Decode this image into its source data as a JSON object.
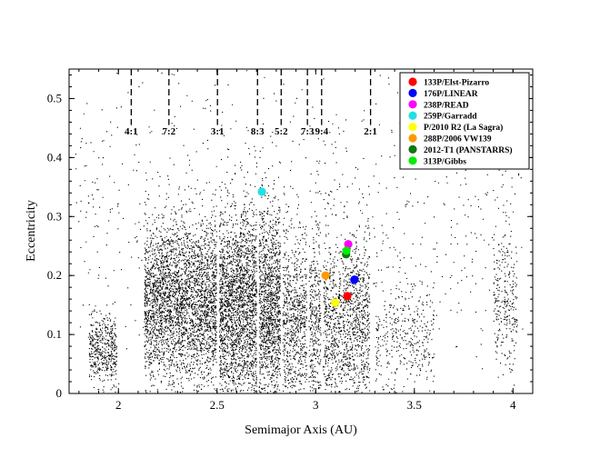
{
  "chart_data": {
    "type": "scatter",
    "xlabel": "Semimajor Axis (AU)",
    "ylabel": "Eccentricity",
    "xlim": [
      1.75,
      4.1
    ],
    "ylim": [
      0,
      0.55
    ],
    "x_ticks": [
      2,
      2.5,
      3,
      3.5,
      4
    ],
    "x_tick_labels": [
      "2",
      "2.5",
      "3",
      "3.5",
      "4"
    ],
    "y_ticks": [
      0,
      0.1,
      0.2,
      0.3,
      0.4,
      0.5
    ],
    "y_tick_labels": [
      "0",
      "0.1",
      "0.2",
      "0.3",
      "0.4",
      "0.5"
    ],
    "grid": false,
    "legend_position": "top-right",
    "resonances": [
      {
        "label": "4:1",
        "a": 2.065
      },
      {
        "label": "7:2",
        "a": 2.256
      },
      {
        "label": "3:1",
        "a": 2.502
      },
      {
        "label": "8:3",
        "a": 2.705
      },
      {
        "label": "5:2",
        "a": 2.825
      },
      {
        "label": "7:3",
        "a": 2.958
      },
      {
        "label": "9:4",
        "a": 3.03
      },
      {
        "label": "2:1",
        "a": 3.278
      }
    ],
    "background_population": {
      "description_label": "",
      "color": "#000000",
      "clusters": [
        {
          "a_range": [
            1.85,
            1.99
          ],
          "e_center": 0.075,
          "e_spread": 0.028,
          "weight": 450
        },
        {
          "a_range": [
            2.13,
            2.5
          ],
          "e_center": 0.155,
          "e_spread": 0.07,
          "weight": 3200
        },
        {
          "a_range": [
            2.51,
            2.82
          ],
          "e_center": 0.145,
          "e_spread": 0.085,
          "weight": 3800
        },
        {
          "a_range": [
            2.83,
            3.28
          ],
          "e_center": 0.12,
          "e_spread": 0.08,
          "weight": 2600
        },
        {
          "a_range": [
            3.3,
            3.6
          ],
          "e_center": 0.09,
          "e_spread": 0.05,
          "weight": 400
        },
        {
          "a_range": [
            3.9,
            4.02
          ],
          "e_center": 0.16,
          "e_spread": 0.06,
          "weight": 260
        },
        {
          "a_range": [
            1.78,
            4.05
          ],
          "e_center": 0.3,
          "e_spread": 0.15,
          "weight": 900
        }
      ]
    },
    "series": [
      {
        "name": "133P/Elst-Pizarro",
        "color": "#ff0000",
        "x": [
          3.16
        ],
        "y": [
          0.165
        ]
      },
      {
        "name": "176P/LINEAR",
        "color": "#0000ff",
        "x": [
          3.196
        ],
        "y": [
          0.193
        ]
      },
      {
        "name": "238P/READ",
        "color": "#ff00ff",
        "x": [
          3.165
        ],
        "y": [
          0.253
        ]
      },
      {
        "name": "259P/Garradd",
        "color": "#22e0e0",
        "x": [
          2.727
        ],
        "y": [
          0.342
        ]
      },
      {
        "name": "P/2010 R2 (La Sagra)",
        "color": "#ffff00",
        "x": [
          3.099
        ],
        "y": [
          0.154
        ]
      },
      {
        "name": "288P/2006 VW139",
        "color": "#ff9900",
        "x": [
          3.05
        ],
        "y": [
          0.2
        ]
      },
      {
        "name": "2012-T1 (PANSTARRS)",
        "color": "#117711",
        "x": [
          3.154
        ],
        "y": [
          0.236
        ]
      },
      {
        "name": "313P/Gibbs",
        "color": "#00ee00",
        "x": [
          3.156
        ],
        "y": [
          0.242
        ]
      }
    ]
  }
}
